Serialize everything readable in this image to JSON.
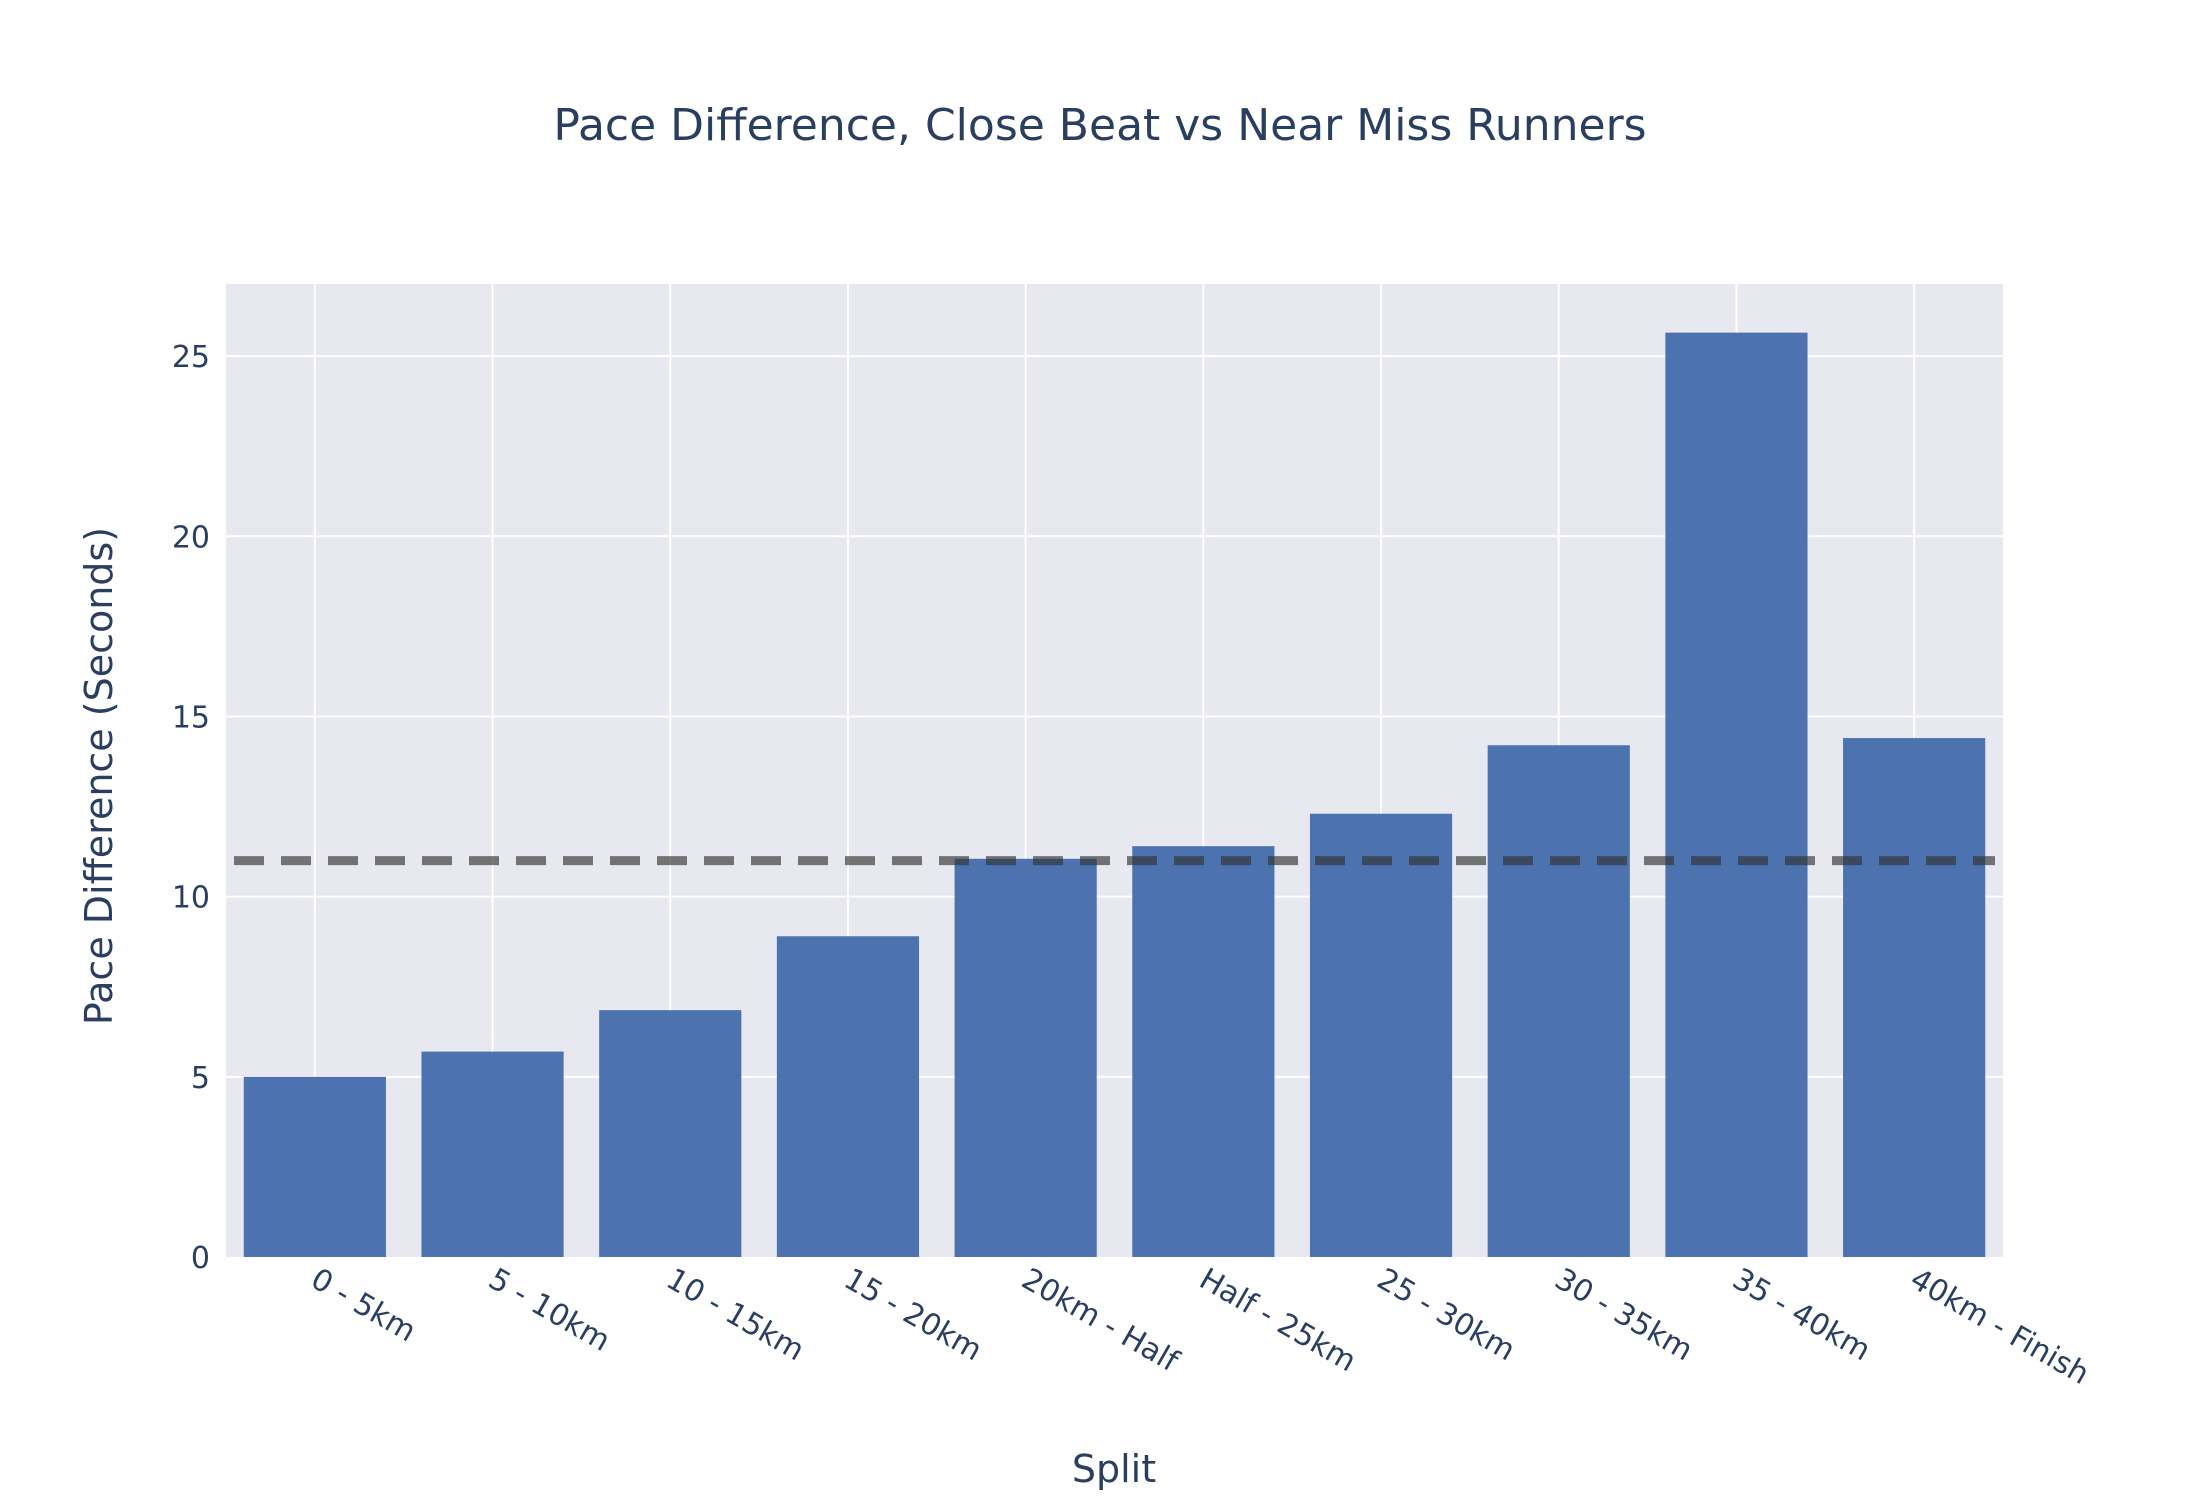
{
  "chart_data": {
    "type": "bar",
    "title": "Pace Difference, Close Beat vs Near Miss Runners",
    "xlabel": "Split",
    "ylabel": "Pace Difference (Seconds)",
    "categories": [
      "0 - 5km",
      "5 - 10km",
      "10 - 15km",
      "15 - 20km",
      "20km - Half",
      "Half - 25km",
      "25 - 30km",
      "30 - 35km",
      "35 - 40km",
      "40km - Finish"
    ],
    "values": [
      5.0,
      5.7,
      6.85,
      8.9,
      11.05,
      11.4,
      12.3,
      14.2,
      25.65,
      14.4
    ],
    "ylim": [
      0,
      27
    ],
    "yticks": [
      0,
      5,
      10,
      15,
      20,
      25
    ],
    "reference_line": {
      "y": 11.0,
      "style": "dashed",
      "color": "#333333"
    },
    "grid": true,
    "colors": {
      "bar": "#4c72b0",
      "plot_background": "#e8e8f0",
      "grid": "#ffffff"
    }
  }
}
